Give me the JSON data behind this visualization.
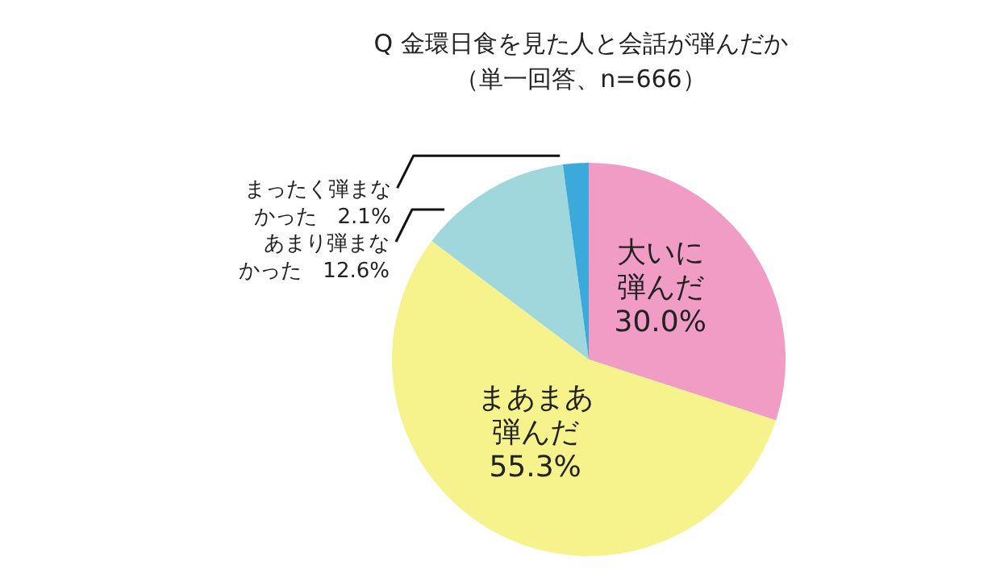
{
  "chart_data": {
    "type": "pie",
    "title": "Q 金環日食を見た人と会話が弾んだか",
    "subtitle": "（単一回答、n=666）",
    "categories": [
      "大いに弾んだ",
      "まあまあ弾んだ",
      "あまり弾まなかった",
      "まったく弾まなかった"
    ],
    "values": [
      30.0,
      55.3,
      12.6,
      2.1
    ],
    "value_labels": [
      "30.0%",
      "55.3%",
      "12.6%",
      "2.1%"
    ],
    "colors": [
      "#f09cc4",
      "#f6f28c",
      "#9fd7dc",
      "#3ba9d9"
    ]
  }
}
